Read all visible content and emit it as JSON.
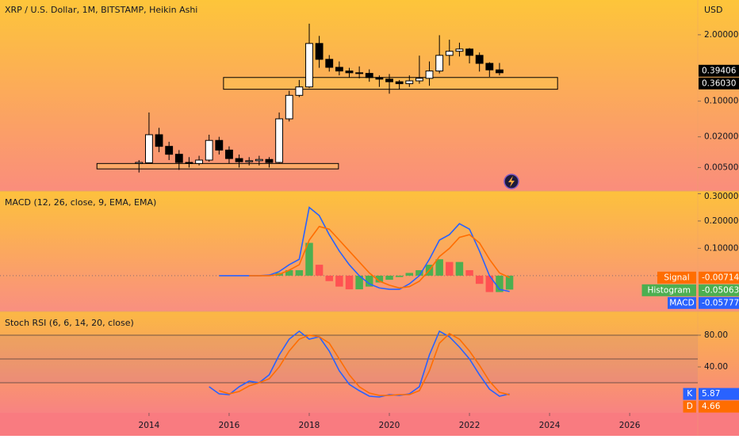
{
  "chart_data": [
    {
      "type": "candlestick",
      "title": "XRP / U.S. Dollar, 1M, BITSTAMP, Heikin Ashi",
      "yunit": "USD",
      "log": true,
      "x": [
        2013.75,
        2014,
        2014.25,
        2014.5,
        2014.75,
        2015,
        2015.25,
        2015.5,
        2015.75,
        2016,
        2016.25,
        2016.5,
        2016.75,
        2017,
        2017.25,
        2017.5,
        2017.75,
        2018,
        2018.25,
        2018.5,
        2018.75,
        2019,
        2019.25,
        2019.5,
        2019.75,
        2020,
        2020.25,
        2020.5,
        2020.75,
        2021,
        2021.25,
        2021.5,
        2021.75,
        2022,
        2022.25,
        2022.5,
        2022.75
      ],
      "open": [
        0.006,
        0.0062,
        0.022,
        0.013,
        0.0091,
        0.0063,
        0.006,
        0.007,
        0.017,
        0.011,
        0.0075,
        0.0065,
        0.0068,
        0.0072,
        0.0063,
        0.045,
        0.13,
        0.19,
        1.35,
        0.66,
        0.46,
        0.39,
        0.36,
        0.35,
        0.29,
        0.27,
        0.24,
        0.22,
        0.25,
        0.28,
        0.39,
        0.79,
        0.95,
        1.05,
        0.79,
        0.55,
        0.41
      ],
      "high": [
        0.007,
        0.06,
        0.03,
        0.016,
        0.011,
        0.008,
        0.0085,
        0.022,
        0.02,
        0.013,
        0.009,
        0.008,
        0.0085,
        0.008,
        0.06,
        0.16,
        0.26,
        3.3,
        1.9,
        0.8,
        0.6,
        0.45,
        0.48,
        0.42,
        0.32,
        0.34,
        0.26,
        0.32,
        0.78,
        0.6,
        1.96,
        1.6,
        1.4,
        1.1,
        0.9,
        0.58,
        0.56
      ],
      "low": [
        0.004,
        0.006,
        0.01,
        0.007,
        0.0045,
        0.005,
        0.0055,
        0.0065,
        0.009,
        0.006,
        0.005,
        0.0055,
        0.0055,
        0.005,
        0.006,
        0.04,
        0.12,
        0.18,
        0.45,
        0.38,
        0.32,
        0.29,
        0.28,
        0.24,
        0.19,
        0.14,
        0.17,
        0.19,
        0.22,
        0.2,
        0.35,
        0.5,
        0.75,
        0.55,
        0.38,
        0.3,
        0.32
      ],
      "close": [
        0.0063,
        0.022,
        0.013,
        0.0091,
        0.0063,
        0.006,
        0.007,
        0.017,
        0.011,
        0.0075,
        0.0065,
        0.0068,
        0.0072,
        0.0063,
        0.045,
        0.13,
        0.19,
        1.35,
        0.66,
        0.46,
        0.39,
        0.36,
        0.35,
        0.29,
        0.27,
        0.24,
        0.22,
        0.25,
        0.28,
        0.39,
        0.79,
        0.95,
        1.05,
        0.79,
        0.55,
        0.41,
        0.36
      ],
      "up_color": "#ffffff",
      "down_color": "#000000",
      "zones": [
        {
          "x": [
            2012.7,
            2018.73
          ],
          "y": [
            0.0047,
            0.006
          ]
        },
        {
          "x": [
            2015.86,
            2024.2
          ],
          "y": [
            0.171,
            0.291
          ]
        }
      ],
      "price_labels": [
        {
          "value": 0.39406,
          "label": "0.39406"
        },
        {
          "value": 0.3603,
          "label": "0.36030"
        }
      ],
      "xlim": [
        2010.28,
        2027.7
      ],
      "ylim": [
        0.0018,
        9.6
      ],
      "yticks": [
        {
          "value": 2,
          "label": "2.00000"
        },
        {
          "value": 0.1,
          "label": "0.10000"
        },
        {
          "value": 0.02,
          "label": "0.02000"
        },
        {
          "value": 0.005,
          "label": "0.00500"
        }
      ]
    },
    {
      "type": "macd",
      "title": "MACD (12, 26, close, 9, EMA, EMA)",
      "x": [
        2015.75,
        2016,
        2016.25,
        2016.5,
        2016.75,
        2017,
        2017.25,
        2017.5,
        2017.75,
        2018,
        2018.25,
        2018.5,
        2018.75,
        2019,
        2019.25,
        2019.5,
        2019.75,
        2020,
        2020.25,
        2020.5,
        2020.75,
        2021,
        2021.25,
        2021.5,
        2021.75,
        2022,
        2022.25,
        2022.5,
        2022.75,
        2023
      ],
      "series": [
        {
          "name": "MACD",
          "color": "#2962ff",
          "last": -0.05777,
          "values": [
            0,
            0,
            0,
            0,
            0,
            0.002,
            0.015,
            0.04,
            0.06,
            0.25,
            0.22,
            0.15,
            0.09,
            0.04,
            0,
            -0.03,
            -0.045,
            -0.05,
            -0.05,
            -0.03,
            0,
            0.06,
            0.13,
            0.15,
            0.19,
            0.17,
            0.09,
            0,
            -0.05,
            -0.058
          ]
        },
        {
          "name": "Signal",
          "color": "#ff6d00",
          "last": -0.00714,
          "values": [
            null,
            null,
            null,
            0,
            0,
            0,
            0.005,
            0.02,
            0.04,
            0.13,
            0.18,
            0.17,
            0.13,
            0.09,
            0.05,
            0.01,
            -0.02,
            -0.035,
            -0.045,
            -0.04,
            -0.02,
            0.02,
            0.07,
            0.1,
            0.14,
            0.15,
            0.12,
            0.06,
            0.01,
            -0.007
          ]
        }
      ],
      "histogram": {
        "name": "Histogram",
        "rising_color": "#4caf50",
        "falling_color": "#ff5252",
        "last": -0.05063,
        "values": [
          null,
          null,
          null,
          0,
          0,
          0.002,
          0.01,
          0.02,
          0.02,
          0.12,
          0.04,
          -0.02,
          -0.04,
          -0.05,
          -0.05,
          -0.04,
          -0.025,
          -0.015,
          -0.005,
          0.01,
          0.02,
          0.04,
          0.06,
          0.05,
          0.05,
          0.02,
          -0.03,
          -0.06,
          -0.06,
          -0.051
        ]
      },
      "zero_line": true,
      "xlim": [
        2010.28,
        2027.7
      ],
      "ylim": [
        -0.128,
        0.307
      ],
      "yticks": [
        {
          "value": 0.3,
          "label": "0.30000"
        },
        {
          "value": 0.2,
          "label": "0.20000"
        },
        {
          "value": 0.1,
          "label": "0.10000"
        }
      ]
    },
    {
      "type": "line",
      "title": "Stoch RSI (6, 6, 14, 20, close)",
      "x": [
        2015.5,
        2015.75,
        2016,
        2016.25,
        2016.5,
        2016.75,
        2017,
        2017.25,
        2017.5,
        2017.75,
        2018,
        2018.25,
        2018.5,
        2018.75,
        2019,
        2019.25,
        2019.5,
        2019.75,
        2020,
        2020.25,
        2020.5,
        2020.75,
        2021,
        2021.25,
        2021.5,
        2021.75,
        2022,
        2022.25,
        2022.5,
        2022.75,
        2023
      ],
      "series": [
        {
          "name": "K",
          "color": "#2962ff",
          "last": 5.87,
          "values": [
            15,
            6,
            5,
            15,
            22,
            20,
            30,
            55,
            75,
            85,
            75,
            78,
            60,
            35,
            18,
            10,
            3,
            2,
            5,
            4,
            6,
            15,
            55,
            85,
            78,
            65,
            50,
            30,
            12,
            3,
            5.87
          ]
        },
        {
          "name": "D",
          "color": "#ff6d00",
          "last": 4.66,
          "values": [
            null,
            10,
            6,
            9,
            16,
            20,
            25,
            40,
            60,
            75,
            80,
            78,
            70,
            50,
            30,
            15,
            7,
            4,
            4,
            5,
            5,
            10,
            35,
            70,
            82,
            75,
            60,
            42,
            22,
            8,
            4.66
          ]
        }
      ],
      "bands": [
        80,
        50,
        20
      ],
      "xlim": [
        2010.28,
        2027.7
      ],
      "ylim": [
        -17,
        109
      ],
      "yticks": [
        {
          "value": 80,
          "label": "80.00"
        },
        {
          "value": 40,
          "label": "40.00"
        }
      ],
      "xticks": [
        2014,
        2016,
        2018,
        2020,
        2022,
        2024,
        2026
      ]
    }
  ]
}
